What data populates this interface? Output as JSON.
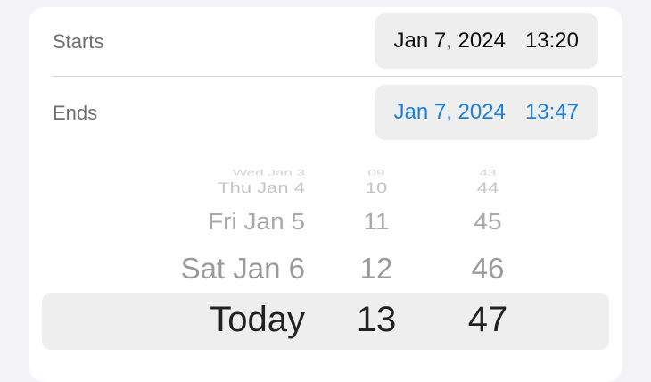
{
  "starts": {
    "label": "Starts",
    "date": "Jan 7, 2024",
    "time": "13:20"
  },
  "ends": {
    "label": "Ends",
    "date": "Jan 7, 2024",
    "time": "13:47"
  },
  "picker": {
    "rows": [
      {
        "day": "Wed Jan 3",
        "hour": "09",
        "minute": "43"
      },
      {
        "day": "Thu Jan 4",
        "hour": "10",
        "minute": "44"
      },
      {
        "day": "Fri Jan 5",
        "hour": "11",
        "minute": "45"
      },
      {
        "day": "Sat Jan 6",
        "hour": "12",
        "minute": "46"
      },
      {
        "day": "Today",
        "hour": "13",
        "minute": "47"
      }
    ]
  },
  "colors": {
    "accent": "#1a7fe0"
  }
}
